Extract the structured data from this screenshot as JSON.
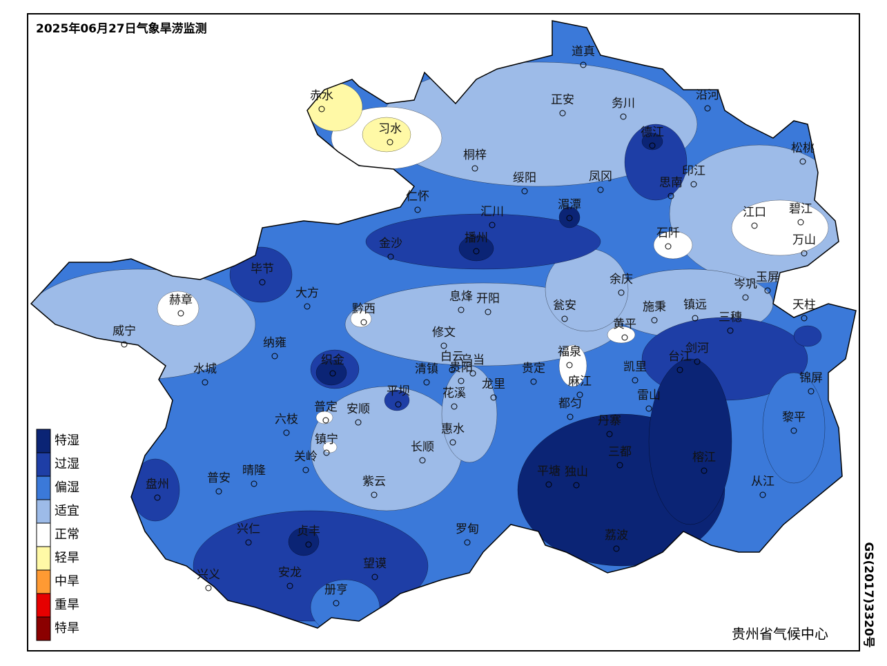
{
  "title": "2025年06月27日气象旱涝监测",
  "legend": [
    {
      "label": "特湿",
      "color": "#0b2475"
    },
    {
      "label": "过湿",
      "color": "#1e3ea6"
    },
    {
      "label": "偏湿",
      "color": "#3b79d9"
    },
    {
      "label": "适宜",
      "color": "#9dbbe8"
    },
    {
      "label": "正常",
      "color": "#ffffff"
    },
    {
      "label": "轻旱",
      "color": "#fff9a6"
    },
    {
      "label": "中旱",
      "color": "#ff9a33"
    },
    {
      "label": "重旱",
      "color": "#e60000"
    },
    {
      "label": "特旱",
      "color": "#8b0000"
    }
  ],
  "cities": [
    "道真",
    "正安",
    "务川",
    "沿河",
    "赤水",
    "习水",
    "桐梓",
    "绥阳",
    "凤冈",
    "德江",
    "印江",
    "思南",
    "松桃",
    "仁怀",
    "汇川",
    "湄潭",
    "江口",
    "碧江",
    "万山",
    "石阡",
    "金沙",
    "播州",
    "毕节",
    "余庆",
    "岑巩",
    "玉屏",
    "赫章",
    "大方",
    "黔西",
    "息烽",
    "开阳",
    "瓮安",
    "施秉",
    "镇远",
    "三穗",
    "天柱",
    "威宁",
    "修文",
    "黄平",
    "纳雍",
    "织金",
    "白云",
    "乌当",
    "福泉",
    "凯里",
    "剑河",
    "台江",
    "锦屏",
    "水城",
    "清镇",
    "贵阳",
    "贵定",
    "麻江",
    "平坝",
    "花溪",
    "龙里",
    "都匀",
    "雷山",
    "普定",
    "安顺",
    "黎平",
    "六枝",
    "镇宁",
    "惠水",
    "长顺",
    "丹寨",
    "三都",
    "榕江",
    "关岭",
    "普安",
    "晴隆",
    "盘州",
    "平塘",
    "独山",
    "从江",
    "紫云",
    "罗甸",
    "兴仁",
    "贞丰",
    "荔波",
    "安龙",
    "望谟",
    "兴义",
    "册亨"
  ],
  "footer": "贵州省气候中心",
  "code": "GS(2017)3320号"
}
